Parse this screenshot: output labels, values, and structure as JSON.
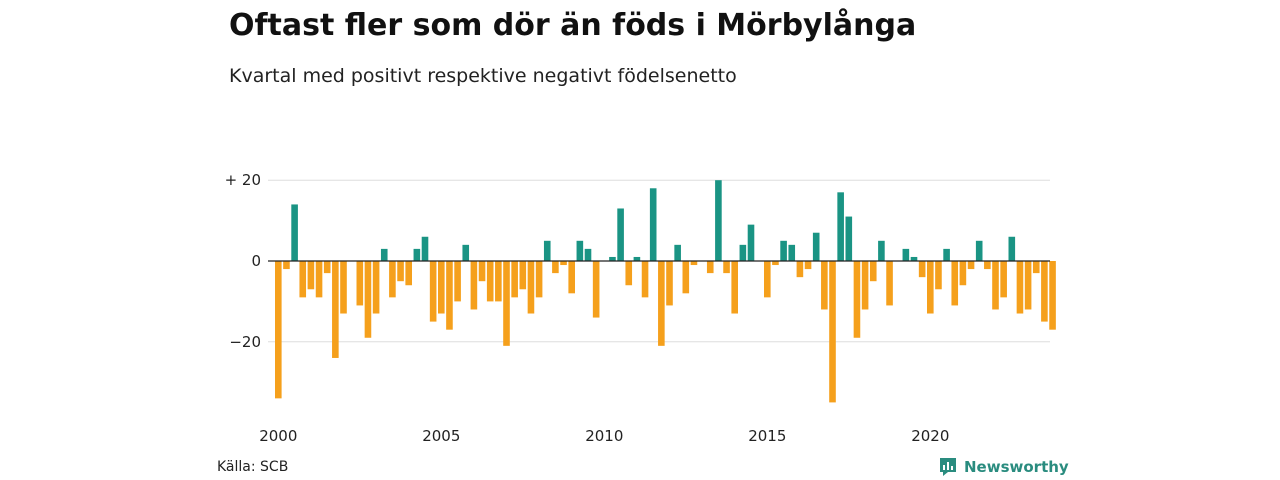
{
  "title": "Oftast fler som dör än föds i Mörbylånga",
  "subtitle": "Kvartal med positivt respektive negativt födelsenetto",
  "source": "Källa: SCB",
  "brand": {
    "name": "Newsworthy",
    "icon": "newsworthy-logo-icon",
    "color": "#2a8c7f"
  },
  "colors": {
    "positive": "#1a9484",
    "negative": "#f5a01c",
    "grid": "#dddddd",
    "zero": "#222222"
  },
  "chart_data": {
    "type": "bar",
    "title": "Oftast fler som dör än föds i Mörbylånga",
    "subtitle": "Kvartal med positivt respektive negativt födelsenetto",
    "x_start": 2000,
    "periods_per_year": 4,
    "x_ticks": [
      2000,
      2005,
      2010,
      2015,
      2020
    ],
    "y_ticks": [
      {
        "value": 20,
        "label": "+ 20"
      },
      {
        "value": 0,
        "label": "0"
      },
      {
        "value": -20,
        "label": "−20"
      }
    ],
    "ylim": [
      -36,
      22
    ],
    "grid": true,
    "values": [
      -34,
      -2,
      14,
      -9,
      -7,
      -9,
      -3,
      -24,
      -13,
      0,
      -11,
      -19,
      -13,
      3,
      -9,
      -5,
      -6,
      3,
      6,
      -15,
      -13,
      -17,
      -10,
      4,
      -12,
      -5,
      -10,
      -10,
      -21,
      -9,
      -7,
      -13,
      -9,
      5,
      -3,
      -1,
      -8,
      5,
      3,
      -14,
      0,
      1,
      13,
      -6,
      1,
      -9,
      18,
      -21,
      -11,
      4,
      -8,
      -1,
      0,
      -3,
      20,
      -3,
      -13,
      4,
      9,
      0,
      -9,
      -1,
      5,
      4,
      -4,
      -2,
      7,
      -12,
      -35,
      17,
      11,
      -19,
      -12,
      -5,
      5,
      -11,
      0,
      3,
      1,
      -4,
      -13,
      -7,
      3,
      -11,
      -6,
      -2,
      5,
      -2,
      -12,
      -9,
      6,
      -13,
      -12,
      -3,
      -15,
      -17
    ]
  }
}
